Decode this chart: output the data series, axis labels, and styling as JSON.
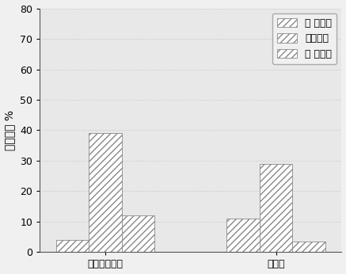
{
  "groups": [
    "生物有机土壤",
    "基坑土"
  ],
  "series": [
    {
      "label": "非 活性隙",
      "values": [
        4,
        11
      ],
      "hatch": "////",
      "facecolor": "white",
      "edgecolor": "#888888"
    },
    {
      "label": "毛管空隙",
      "values": [
        39,
        29
      ],
      "hatch": "////",
      "facecolor": "white",
      "edgecolor": "#888888"
    },
    {
      "label": "通 气空隙",
      "values": [
        12,
        3.5
      ],
      "hatch": "////",
      "facecolor": "white",
      "edgecolor": "#888888"
    }
  ],
  "ylabel": "空隙占比 %",
  "ylim": [
    0,
    80
  ],
  "yticks": [
    0,
    10,
    20,
    30,
    40,
    50,
    60,
    70,
    80
  ],
  "bar_width": 0.25,
  "group_centers": [
    1.0,
    2.3
  ],
  "background_color": "#f0f0f0",
  "plot_bg_color": "#e8e8e8",
  "legend_loc": "upper right",
  "figsize": [
    4.37,
    3.46
  ],
  "dpi": 100
}
